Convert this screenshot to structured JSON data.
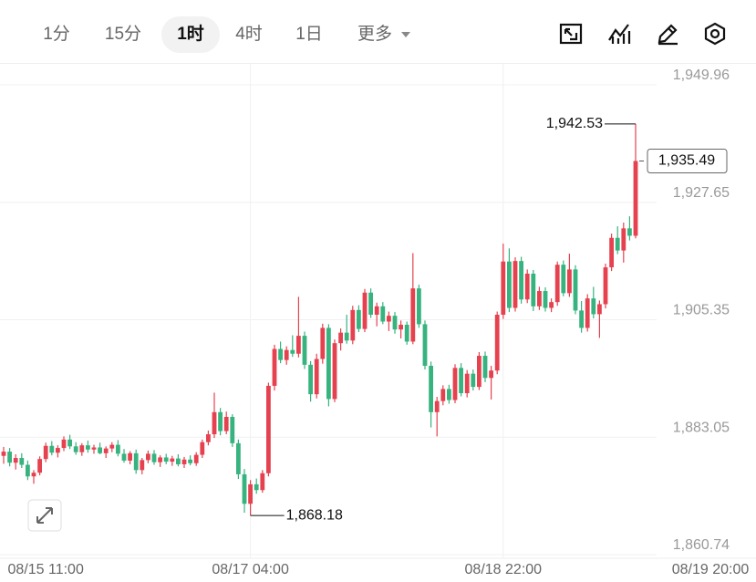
{
  "toolbar": {
    "intervals": [
      "1分",
      "15分",
      "1时",
      "4时",
      "1日"
    ],
    "more": "更多"
  },
  "chart_data": {
    "type": "candlestick",
    "up_color": "#e5414f",
    "down_color": "#36b37e",
    "ylim": [
      1860.05,
      1953.94
    ],
    "yticks": [
      {
        "value": 1949.96,
        "label": "1,949.96"
      },
      {
        "value": 1927.65,
        "label": "1,927.65"
      },
      {
        "value": 1905.35,
        "label": "1,905.35"
      },
      {
        "value": 1883.05,
        "label": "1,883.05"
      },
      {
        "value": 1860.74,
        "label": "1,860.74"
      }
    ],
    "grid": true,
    "categories": [
      null,
      null,
      null,
      null,
      null,
      null,
      null,
      "08/15 11:00",
      null,
      null,
      null,
      null,
      null,
      null,
      null,
      null,
      null,
      null,
      null,
      null,
      null,
      null,
      null,
      null,
      null,
      null,
      null,
      null,
      null,
      null,
      null,
      null,
      null,
      null,
      null,
      null,
      null,
      null,
      null,
      null,
      null,
      "08/17 04:00",
      null,
      null,
      null,
      null,
      null,
      null,
      null,
      null,
      null,
      null,
      null,
      null,
      null,
      null,
      null,
      null,
      null,
      null,
      null,
      null,
      null,
      null,
      null,
      null,
      null,
      null,
      null,
      null,
      null,
      null,
      null,
      null,
      null,
      null,
      null,
      null,
      null,
      null,
      null,
      null,
      null,
      "08/18 22:00",
      null,
      null,
      null,
      null,
      null,
      null,
      null,
      null,
      null,
      null,
      null,
      null,
      null,
      null,
      null,
      null,
      null,
      null,
      null,
      null,
      null,
      null,
      null,
      null,
      null,
      null,
      null,
      null,
      null,
      null,
      null,
      null,
      null,
      null,
      null,
      null,
      null,
      null,
      "08/19 20:00"
    ],
    "ohlc": [
      [
        1879.5,
        1881.2,
        1878.0,
        1880.3
      ],
      [
        1880.3,
        1881.0,
        1877.5,
        1878.2
      ],
      [
        1878.2,
        1879.8,
        1876.9,
        1879.1
      ],
      [
        1879.1,
        1880.0,
        1877.2,
        1877.8
      ],
      [
        1877.8,
        1878.6,
        1874.9,
        1875.6
      ],
      [
        1875.6,
        1876.8,
        1874.2,
        1876.3
      ],
      [
        1876.3,
        1879.4,
        1875.8,
        1878.9
      ],
      [
        1878.9,
        1882.0,
        1878.3,
        1881.4
      ],
      [
        1881.4,
        1882.3,
        1879.6,
        1880.1
      ],
      [
        1880.1,
        1881.5,
        1879.2,
        1881.0
      ],
      [
        1881.0,
        1883.2,
        1880.4,
        1882.6
      ],
      [
        1882.6,
        1883.5,
        1880.8,
        1881.3
      ],
      [
        1881.3,
        1882.1,
        1879.7,
        1880.2
      ],
      [
        1880.2,
        1881.9,
        1879.5,
        1881.5
      ],
      [
        1881.5,
        1882.4,
        1880.1,
        1880.7
      ],
      [
        1880.7,
        1881.6,
        1879.9,
        1881.1
      ],
      [
        1881.1,
        1882.0,
        1879.8,
        1880.0
      ],
      [
        1880.0,
        1881.3,
        1879.1,
        1880.9
      ],
      [
        1880.9,
        1882.1,
        1880.2,
        1881.6
      ],
      [
        1881.6,
        1882.5,
        1879.4,
        1879.9
      ],
      [
        1879.9,
        1880.8,
        1878.2,
        1878.6
      ],
      [
        1878.6,
        1880.4,
        1877.9,
        1880.0
      ],
      [
        1880.0,
        1880.7,
        1876.1,
        1876.8
      ],
      [
        1876.8,
        1879.1,
        1876.0,
        1878.7
      ],
      [
        1878.7,
        1880.5,
        1878.1,
        1879.9
      ],
      [
        1879.9,
        1880.6,
        1877.8,
        1878.3
      ],
      [
        1878.3,
        1879.6,
        1877.4,
        1879.2
      ],
      [
        1879.2,
        1879.9,
        1877.9,
        1878.4
      ],
      [
        1878.4,
        1879.5,
        1877.6,
        1879.0
      ],
      [
        1879.0,
        1879.8,
        1877.5,
        1877.9
      ],
      [
        1877.9,
        1879.3,
        1877.2,
        1878.8
      ],
      [
        1878.8,
        1879.6,
        1877.7,
        1878.1
      ],
      [
        1878.1,
        1880.2,
        1877.6,
        1879.7
      ],
      [
        1879.7,
        1882.6,
        1879.1,
        1882.1
      ],
      [
        1882.1,
        1884.3,
        1881.5,
        1883.6
      ],
      [
        1883.6,
        1891.5,
        1882.9,
        1887.8
      ],
      [
        1887.8,
        1888.6,
        1883.4,
        1884.2
      ],
      [
        1884.2,
        1887.9,
        1883.6,
        1886.9
      ],
      [
        1886.9,
        1887.4,
        1881.2,
        1881.9
      ],
      [
        1881.9,
        1882.6,
        1875.1,
        1876.0
      ],
      [
        1876.0,
        1877.0,
        1868.7,
        1870.4
      ],
      [
        1870.4,
        1874.9,
        1868.18,
        1874.1
      ],
      [
        1874.1,
        1875.2,
        1872.3,
        1873.0
      ],
      [
        1873.0,
        1876.8,
        1872.5,
        1876.2
      ],
      [
        1876.2,
        1893.4,
        1875.6,
        1892.8
      ],
      [
        1892.8,
        1900.6,
        1891.9,
        1899.8
      ],
      [
        1899.8,
        1901.2,
        1897.1,
        1897.7
      ],
      [
        1897.7,
        1900.3,
        1896.8,
        1899.6
      ],
      [
        1899.6,
        1902.4,
        1898.3,
        1898.9
      ],
      [
        1898.9,
        1909.7,
        1898.2,
        1902.3
      ],
      [
        1902.3,
        1903.1,
        1896.0,
        1896.8
      ],
      [
        1896.8,
        1897.5,
        1889.8,
        1891.2
      ],
      [
        1891.2,
        1898.9,
        1890.4,
        1897.9
      ],
      [
        1897.9,
        1904.6,
        1897.0,
        1903.8
      ],
      [
        1903.8,
        1904.5,
        1888.9,
        1890.3
      ],
      [
        1890.3,
        1901.6,
        1889.7,
        1900.9
      ],
      [
        1900.9,
        1903.7,
        1899.5,
        1902.9
      ],
      [
        1902.9,
        1906.3,
        1900.8,
        1901.4
      ],
      [
        1901.4,
        1908.0,
        1900.7,
        1907.2
      ],
      [
        1907.2,
        1908.1,
        1903.0,
        1903.6
      ],
      [
        1903.6,
        1911.2,
        1903.0,
        1910.5
      ],
      [
        1910.5,
        1911.3,
        1905.7,
        1906.3
      ],
      [
        1906.3,
        1908.6,
        1904.1,
        1907.9
      ],
      [
        1907.9,
        1908.7,
        1904.5,
        1905.0
      ],
      [
        1905.0,
        1906.9,
        1903.2,
        1906.1
      ],
      [
        1906.1,
        1906.8,
        1902.7,
        1903.5
      ],
      [
        1903.5,
        1905.2,
        1901.8,
        1904.4
      ],
      [
        1904.4,
        1905.0,
        1900.6,
        1901.2
      ],
      [
        1901.2,
        1918.0,
        1900.7,
        1911.3
      ],
      [
        1911.3,
        1912.0,
        1903.8,
        1904.5
      ],
      [
        1904.5,
        1905.2,
        1895.9,
        1896.6
      ],
      [
        1896.6,
        1897.4,
        1884.9,
        1887.8
      ],
      [
        1887.8,
        1890.7,
        1883.2,
        1889.9
      ],
      [
        1889.9,
        1892.9,
        1889.1,
        1892.2
      ],
      [
        1892.2,
        1893.0,
        1889.4,
        1890.1
      ],
      [
        1890.1,
        1896.9,
        1889.5,
        1896.2
      ],
      [
        1896.2,
        1897.1,
        1890.8,
        1891.4
      ],
      [
        1891.4,
        1895.8,
        1890.6,
        1895.1
      ],
      [
        1895.1,
        1895.9,
        1891.9,
        1892.6
      ],
      [
        1892.6,
        1899.2,
        1892.0,
        1898.5
      ],
      [
        1898.5,
        1899.3,
        1893.5,
        1894.3
      ],
      [
        1894.3,
        1896.6,
        1890.2,
        1895.7
      ],
      [
        1895.7,
        1906.9,
        1895.0,
        1906.3
      ],
      [
        1906.3,
        1919.8,
        1905.5,
        1916.4
      ],
      [
        1916.4,
        1918.9,
        1906.8,
        1907.6
      ],
      [
        1907.6,
        1917.2,
        1906.9,
        1916.5
      ],
      [
        1916.5,
        1917.3,
        1908.4,
        1909.2
      ],
      [
        1909.2,
        1914.9,
        1908.5,
        1914.1
      ],
      [
        1914.1,
        1914.8,
        1907.0,
        1907.9
      ],
      [
        1907.9,
        1911.6,
        1907.2,
        1910.8
      ],
      [
        1910.8,
        1911.5,
        1906.9,
        1907.6
      ],
      [
        1907.6,
        1909.4,
        1906.8,
        1908.7
      ],
      [
        1908.7,
        1916.4,
        1908.0,
        1915.8
      ],
      [
        1915.8,
        1916.6,
        1909.8,
        1910.4
      ],
      [
        1910.4,
        1917.9,
        1909.7,
        1914.9
      ],
      [
        1914.9,
        1915.7,
        1906.4,
        1907.1
      ],
      [
        1907.1,
        1908.9,
        1902.9,
        1903.8
      ],
      [
        1903.8,
        1910.2,
        1903.1,
        1909.4
      ],
      [
        1909.4,
        1911.6,
        1905.6,
        1906.4
      ],
      [
        1906.4,
        1909.0,
        1901.9,
        1908.3
      ],
      [
        1908.3,
        1916.0,
        1907.5,
        1915.3
      ],
      [
        1915.3,
        1921.7,
        1914.6,
        1920.9
      ],
      [
        1920.9,
        1923.1,
        1917.8,
        1918.5
      ],
      [
        1918.5,
        1923.8,
        1916.2,
        1922.7
      ],
      [
        1922.7,
        1925.0,
        1920.4,
        1921.3
      ],
      [
        1921.3,
        1942.53,
        1920.8,
        1935.49
      ],
      null,
      null,
      null,
      null,
      null,
      null,
      null,
      null,
      null,
      null,
      null,
      null,
      null
    ],
    "annotations": {
      "max": {
        "value": 1942.53,
        "label": "1,942.53"
      },
      "min": {
        "value": 1868.18,
        "label": "1,868.18"
      },
      "last": {
        "value": 1935.49,
        "label": "1,935.49"
      }
    }
  }
}
